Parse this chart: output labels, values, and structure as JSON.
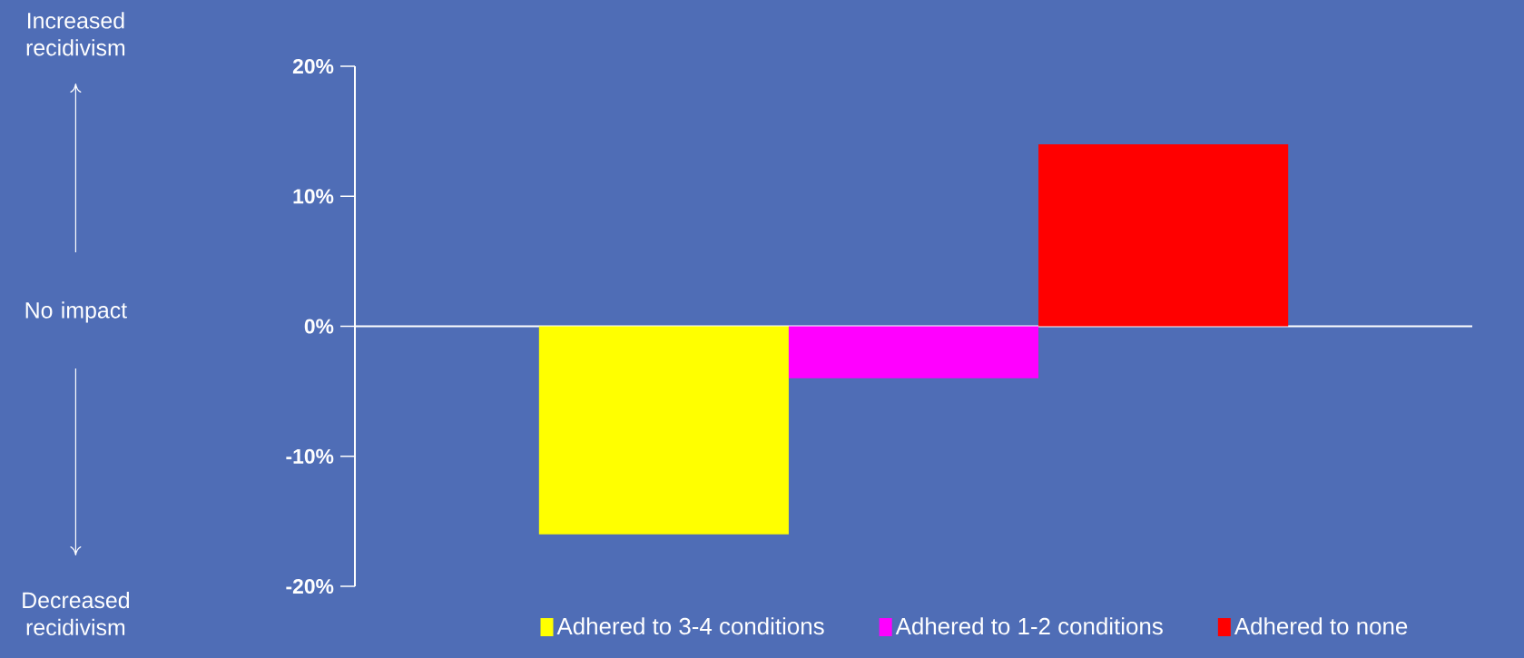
{
  "chart_data": {
    "type": "bar",
    "categories": [
      null
    ],
    "series": [
      {
        "name": "Adhered to 3-4 conditions",
        "color": "#ffff00",
        "values": [
          -16
        ]
      },
      {
        "name": "Adhered to 1-2 conditions",
        "color": "#ff00ff",
        "values": [
          -4
        ]
      },
      {
        "name": "Adhered to none",
        "color": "#ff0000",
        "values": [
          14
        ]
      }
    ],
    "ylim": [
      -20,
      20
    ],
    "yticks": [
      {
        "value": 20,
        "label": "20%"
      },
      {
        "value": 10,
        "label": "10%"
      },
      {
        "value": 0,
        "label": "0%"
      },
      {
        "value": -10,
        "label": "-10%"
      },
      {
        "value": -20,
        "label": "-20%"
      }
    ],
    "legend": "bottom",
    "annotations": [
      "Increased recidivism",
      "No impact",
      "Decreased recidivism"
    ]
  }
}
